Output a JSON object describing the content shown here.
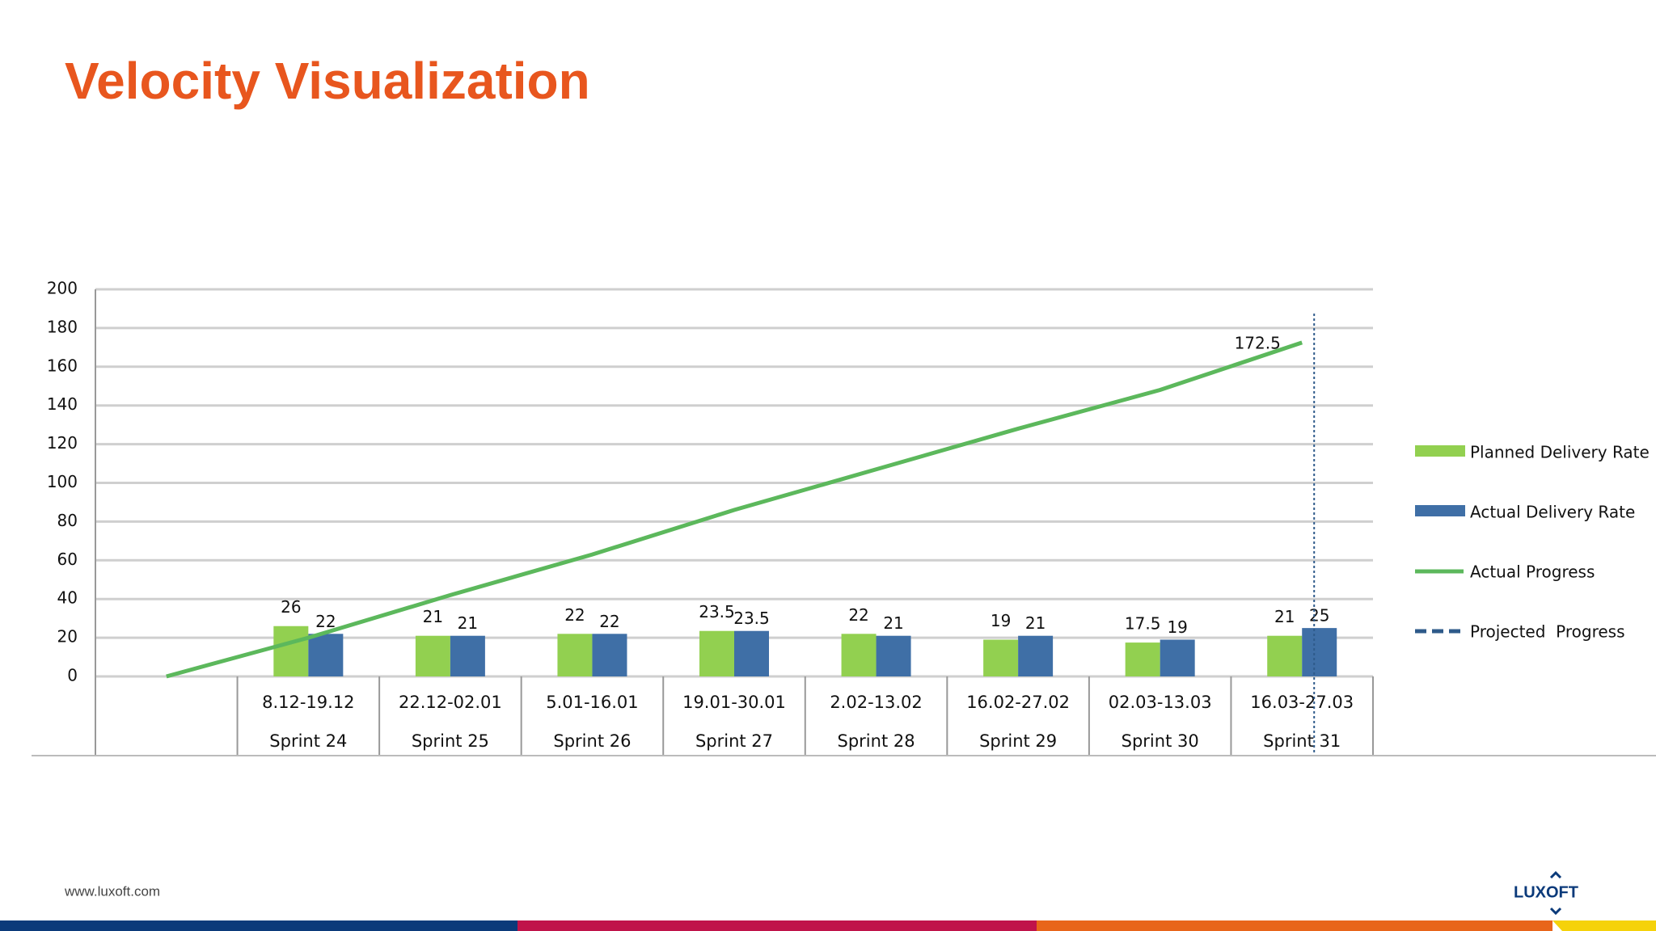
{
  "header": {
    "title": "Velocity Visualization"
  },
  "footer": {
    "url": "www.luxoft.com",
    "logo": "LUXOFT"
  },
  "chart_data": {
    "type": "bar",
    "categories": [
      null,
      "8.12-19.12",
      "22.12-02.01",
      "5.01-16.01",
      "19.01-30.01",
      "2.02-13.02",
      "16.02-27.02",
      "02.03-13.03",
      "16.03-27.03"
    ],
    "category_groups": [
      null,
      "Sprint 24",
      "Sprint 25",
      "Sprint 26",
      "Sprint 27",
      "Sprint 28",
      "Sprint 29",
      "Sprint 30",
      "Sprint 31"
    ],
    "series": [
      {
        "name": "Planned Delivery Rate",
        "type": "bar",
        "color": "#92d050",
        "values": [
          null,
          26,
          21,
          22,
          23.5,
          22,
          19,
          17.5,
          21
        ]
      },
      {
        "name": "Actual Delivery Rate",
        "type": "bar",
        "color": "#3f6fa6",
        "values": [
          null,
          22,
          21,
          22,
          23.5,
          21,
          21,
          19,
          25
        ]
      },
      {
        "name": "Actual Progress",
        "type": "line",
        "color": "#5cb85c",
        "values": [
          0,
          20,
          42,
          63,
          86,
          107,
          128,
          148,
          172.5
        ]
      },
      {
        "name": "Projected  Progress",
        "type": "dashed",
        "color": "#2e5a8a"
      }
    ],
    "ylim": [
      0,
      200
    ],
    "yticks": [
      0,
      20,
      40,
      60,
      80,
      100,
      120,
      140,
      160,
      180,
      200
    ],
    "grid": true,
    "legend": "right"
  }
}
